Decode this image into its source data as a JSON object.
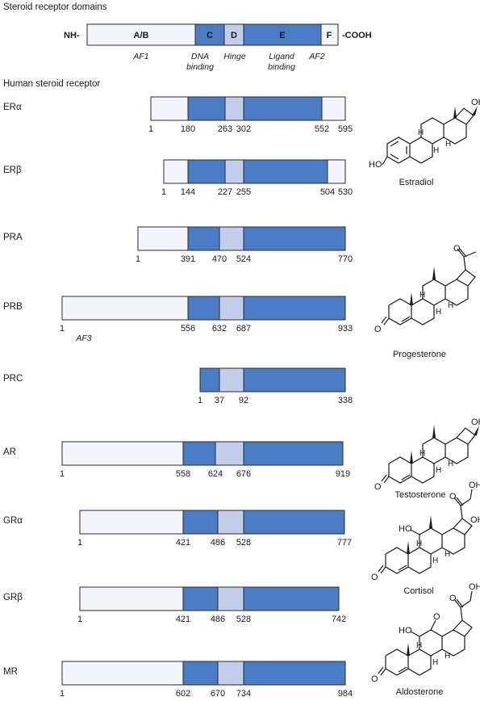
{
  "colors": {
    "ab": "#f3f5fb",
    "c": "#4a7cc5",
    "d": "#c3cfea",
    "e": "#4a7cc5",
    "f": "#f3f5fb",
    "stroke": "#2a2a2a"
  },
  "domains_title": "Steroid receptor domains",
  "schematic": {
    "nh": "NH-",
    "cooh": "-COOH",
    "segments": [
      {
        "key": "ab",
        "label": "A/B"
      },
      {
        "key": "c",
        "label": "C"
      },
      {
        "key": "d",
        "label": "D"
      },
      {
        "key": "e",
        "label": "E"
      },
      {
        "key": "f",
        "label": "F"
      }
    ],
    "annotations": [
      {
        "key": "af1",
        "lines": [
          "AF1"
        ]
      },
      {
        "key": "dna",
        "lines": [
          "DNA",
          "binding"
        ]
      },
      {
        "key": "hinge",
        "lines": [
          "Hinge"
        ]
      },
      {
        "key": "ligand",
        "lines": [
          "Ligand",
          "binding"
        ]
      },
      {
        "key": "af2",
        "lines": [
          "AF2"
        ]
      }
    ]
  },
  "receptors_title": "Human steroid receptor",
  "receptors": [
    {
      "name": "ERα",
      "boundaries": [
        1,
        180,
        263,
        302,
        552,
        595
      ]
    },
    {
      "name": "ERβ",
      "boundaries": [
        1,
        144,
        227,
        255,
        504,
        530
      ]
    },
    {
      "name": "PRA",
      "boundaries": [
        1,
        391,
        470,
        524,
        770
      ]
    },
    {
      "name": "PRB",
      "boundaries": [
        1,
        556,
        632,
        687,
        933
      ],
      "note": "AF3"
    },
    {
      "name": "PRC",
      "boundaries": [
        1,
        37,
        92,
        338
      ]
    },
    {
      "name": "AR",
      "boundaries": [
        1,
        558,
        624,
        676,
        919
      ]
    },
    {
      "name": "GRα",
      "boundaries": [
        1,
        421,
        486,
        528,
        777
      ]
    },
    {
      "name": "GRβ",
      "boundaries": [
        1,
        421,
        486,
        528,
        742
      ]
    },
    {
      "name": "MR",
      "boundaries": [
        1,
        602,
        670,
        734,
        984
      ]
    }
  ],
  "structures": [
    {
      "key": "estradiol",
      "name": "Estradiol",
      "labels": [
        "OH",
        "HO",
        "H",
        "H",
        "H"
      ]
    },
    {
      "key": "progesterone",
      "name": "Progesterone",
      "labels": [
        "O",
        "O",
        "H",
        "H",
        "H"
      ]
    },
    {
      "key": "testosterone",
      "name": "Testosterone",
      "labels": [
        "OH",
        "O",
        "H",
        "H",
        "H"
      ]
    },
    {
      "key": "cortisol",
      "name": "Cortisol",
      "labels": [
        "HO",
        "O",
        "OH",
        "OH",
        "O",
        "H",
        "H",
        "H"
      ]
    },
    {
      "key": "aldosterone",
      "name": "Aldosterone",
      "labels": [
        "HO",
        "O",
        "O",
        "OH",
        "O",
        "H",
        "H",
        "H"
      ]
    }
  ]
}
